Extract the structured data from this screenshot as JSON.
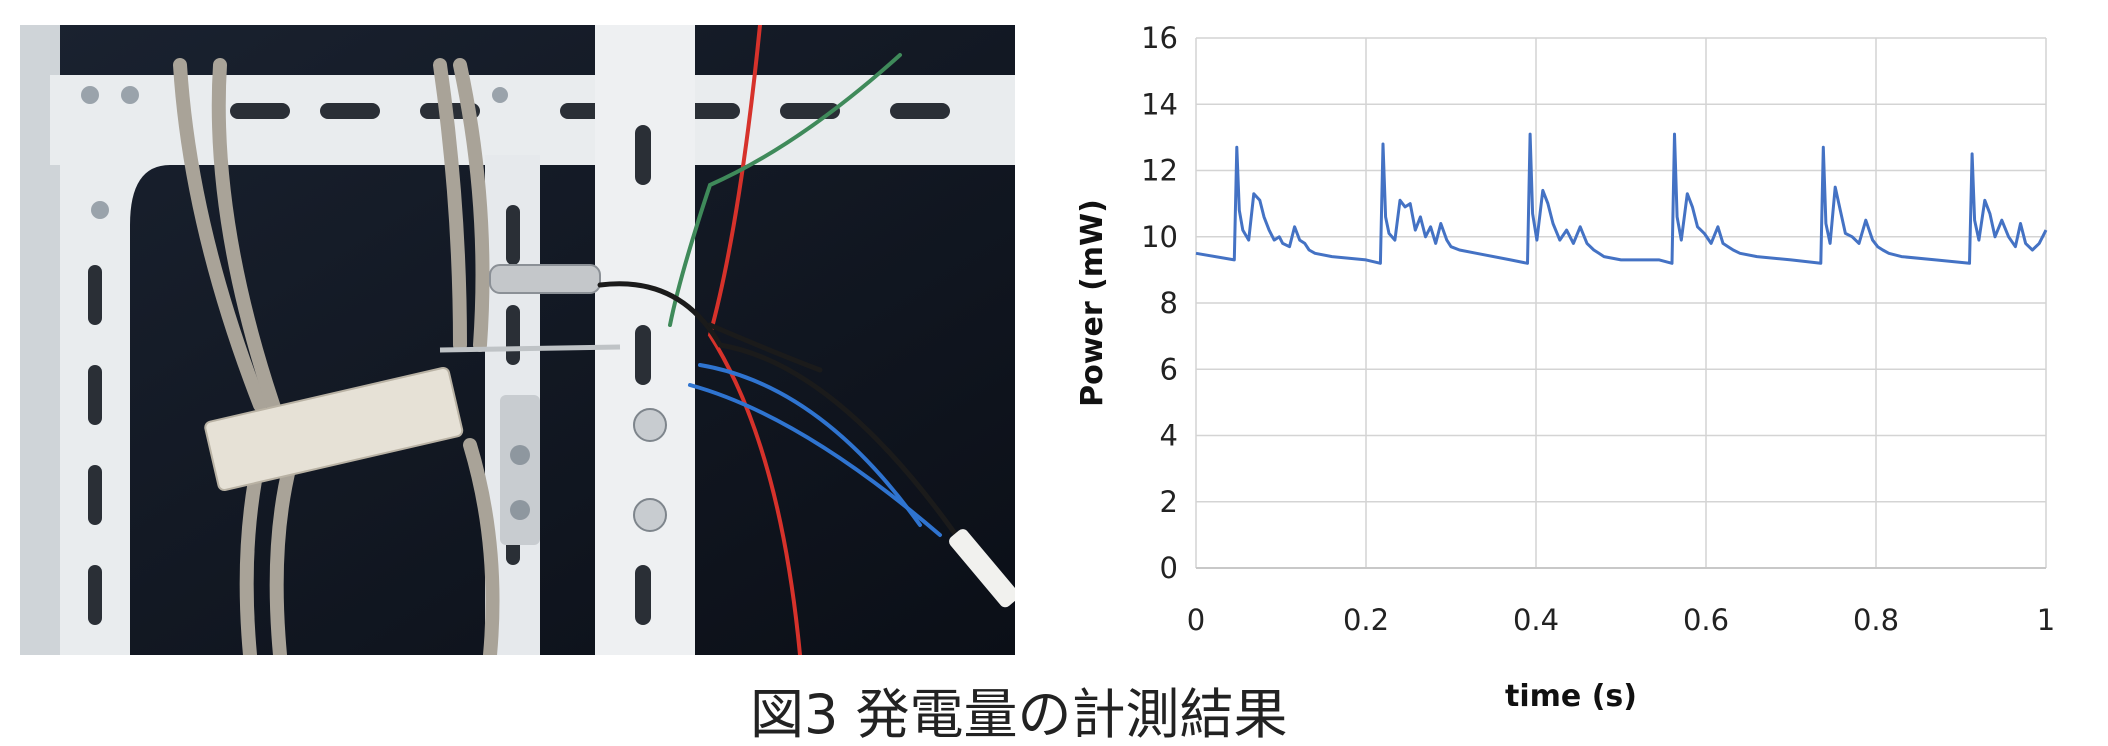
{
  "caption": "図3 発電量の計測結果",
  "chart_data": {
    "type": "line",
    "title": "",
    "xlabel": "time (s)",
    "ylabel": "Power (mW)",
    "xlim": [
      0,
      1
    ],
    "ylim": [
      0,
      16
    ],
    "x_ticks": [
      0,
      0.2,
      0.4,
      0.6,
      0.8,
      1
    ],
    "x_tick_labels": [
      "0",
      "0.2",
      "0.4",
      "0.6",
      "0.8",
      "1"
    ],
    "y_ticks": [
      0,
      2,
      4,
      6,
      8,
      10,
      12,
      14,
      16
    ],
    "y_tick_labels": [
      "0",
      "2",
      "4",
      "6",
      "8",
      "10",
      "12",
      "14",
      "16"
    ],
    "grid": true,
    "series": [
      {
        "color": "#4472c4",
        "x": [
          0,
          0.045,
          0.048,
          0.051,
          0.055,
          0.062,
          0.068,
          0.075,
          0.08,
          0.086,
          0.092,
          0.098,
          0.102,
          0.11,
          0.116,
          0.122,
          0.128,
          0.133,
          0.14,
          0.16,
          0.2,
          0.217,
          0.22,
          0.223,
          0.227,
          0.234,
          0.24,
          0.246,
          0.252,
          0.258,
          0.264,
          0.27,
          0.276,
          0.282,
          0.288,
          0.295,
          0.3,
          0.31,
          0.33,
          0.37,
          0.39,
          0.393,
          0.396,
          0.401,
          0.408,
          0.414,
          0.42,
          0.428,
          0.436,
          0.444,
          0.452,
          0.46,
          0.468,
          0.474,
          0.48,
          0.5,
          0.545,
          0.56,
          0.563,
          0.566,
          0.571,
          0.578,
          0.584,
          0.59,
          0.598,
          0.606,
          0.614,
          0.62,
          0.626,
          0.632,
          0.64,
          0.66,
          0.7,
          0.735,
          0.738,
          0.741,
          0.746,
          0.752,
          0.758,
          0.764,
          0.772,
          0.78,
          0.788,
          0.796,
          0.802,
          0.808,
          0.815,
          0.83,
          0.87,
          0.91,
          0.913,
          0.916,
          0.921,
          0.928,
          0.934,
          0.94,
          0.948,
          0.956,
          0.964,
          0.97,
          0.976,
          0.984,
          0.992,
          1.0
        ],
        "y": [
          9.5,
          9.3,
          12.7,
          10.8,
          10.2,
          9.9,
          11.3,
          11.1,
          10.6,
          10.2,
          9.9,
          10.0,
          9.8,
          9.7,
          10.3,
          9.9,
          9.8,
          9.6,
          9.5,
          9.4,
          9.3,
          9.2,
          12.8,
          10.6,
          10.1,
          9.9,
          11.1,
          10.9,
          11.0,
          10.2,
          10.6,
          10.0,
          10.3,
          9.8,
          10.4,
          9.9,
          9.7,
          9.6,
          9.5,
          9.3,
          9.2,
          13.1,
          10.7,
          9.9,
          11.4,
          11.0,
          10.4,
          9.9,
          10.2,
          9.8,
          10.3,
          9.8,
          9.6,
          9.5,
          9.4,
          9.3,
          9.3,
          9.2,
          13.1,
          10.6,
          9.9,
          11.3,
          10.9,
          10.3,
          10.1,
          9.8,
          10.3,
          9.8,
          9.7,
          9.6,
          9.5,
          9.4,
          9.3,
          9.2,
          12.7,
          10.4,
          9.8,
          11.5,
          10.8,
          10.1,
          10.0,
          9.8,
          10.5,
          9.9,
          9.7,
          9.6,
          9.5,
          9.4,
          9.3,
          9.2,
          12.5,
          10.5,
          9.9,
          11.1,
          10.7,
          10.0,
          10.5,
          10.0,
          9.7,
          10.4,
          9.8,
          9.6,
          9.8,
          10.2
        ]
      }
    ]
  }
}
